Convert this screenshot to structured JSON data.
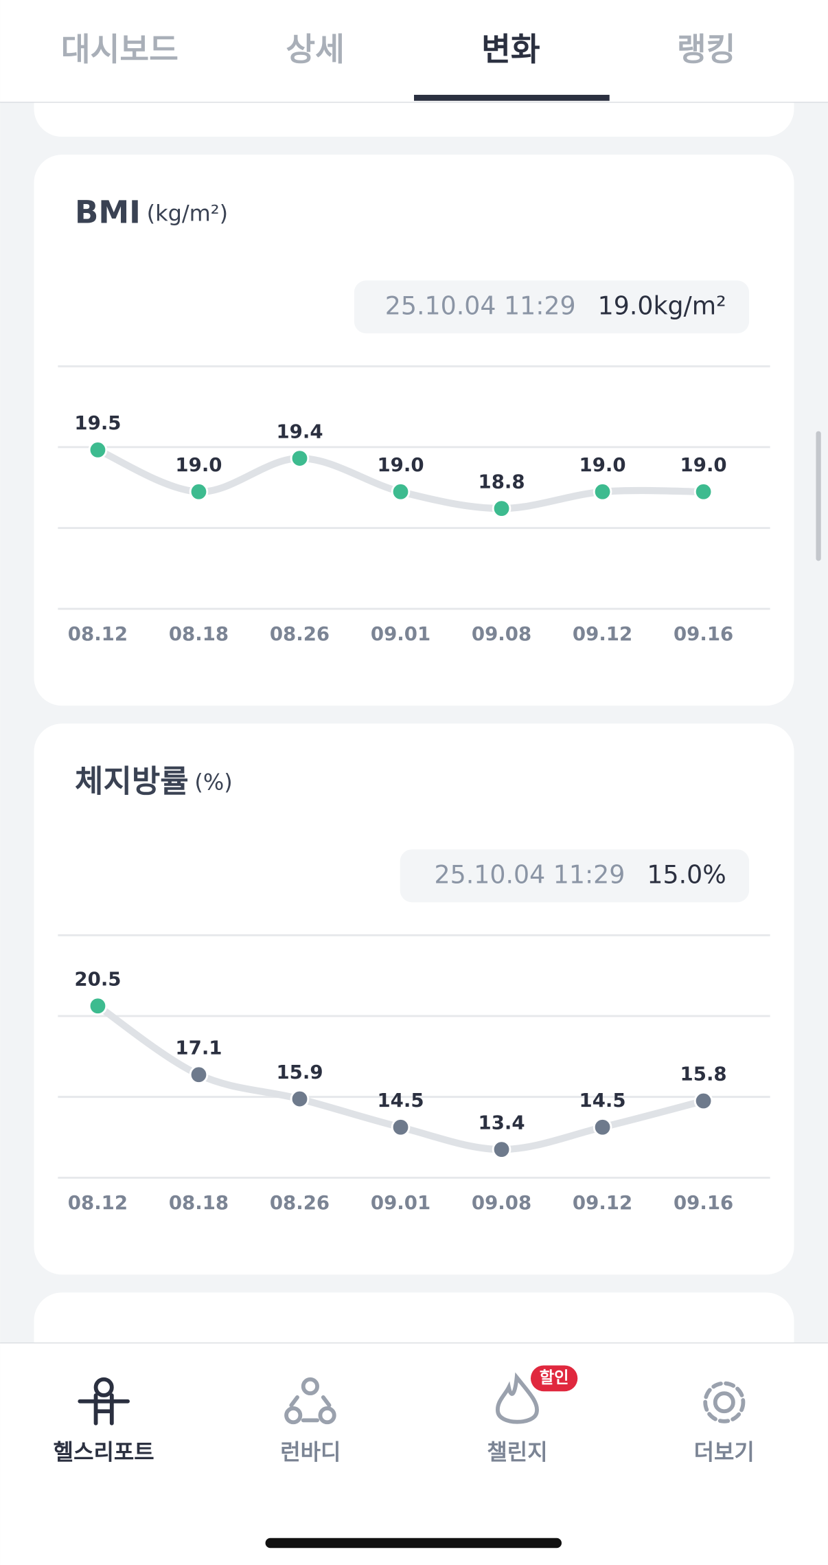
{
  "tabs": [
    "대시보드",
    "상세",
    "변화",
    "랭킹"
  ],
  "active_tab": 2,
  "cards": [
    {
      "title": "BMI",
      "unit": "(kg/m²)",
      "latest_time": "25.10.04 11:29",
      "latest_value": "19.0kg/m²",
      "chart_data": {
        "type": "line",
        "categories": [
          "08.12",
          "08.18",
          "08.26",
          "09.01",
          "09.08",
          "09.12",
          "09.16"
        ],
        "values": [
          19.5,
          19.0,
          19.4,
          19.0,
          18.8,
          19.0,
          19.0
        ],
        "value_labels": [
          "19.5",
          "19.0",
          "19.4",
          "19.0",
          "18.8",
          "19.0",
          "19.0"
        ],
        "point_colors": [
          "#3dbb8f",
          "#3dbb8f",
          "#3dbb8f",
          "#3dbb8f",
          "#3dbb8f",
          "#3dbb8f",
          "#3dbb8f"
        ],
        "line_color": "#dfe2e6",
        "ylim": [
          17.6,
          20.5
        ]
      }
    },
    {
      "title": "체지방률",
      "unit": "(%)",
      "latest_time": "25.10.04 11:29",
      "latest_value": "15.0%",
      "chart_data": {
        "type": "line",
        "categories": [
          "08.12",
          "08.18",
          "08.26",
          "09.01",
          "09.08",
          "09.12",
          "09.16"
        ],
        "values": [
          20.5,
          17.1,
          15.9,
          14.5,
          13.4,
          14.5,
          15.8
        ],
        "point_colors": [
          "#3dbb8f",
          "#6e7a8c",
          "#6e7a8c",
          "#6e7a8c",
          "#6e7a8c",
          "#6e7a8c",
          "#6e7a8c"
        ],
        "line_color": "#dfe2e6",
        "ylim": [
          12,
          24
        ]
      }
    }
  ],
  "nav": [
    "헬스리포트",
    "런바디",
    "챌린지",
    "더보기"
  ],
  "badge": "할인"
}
